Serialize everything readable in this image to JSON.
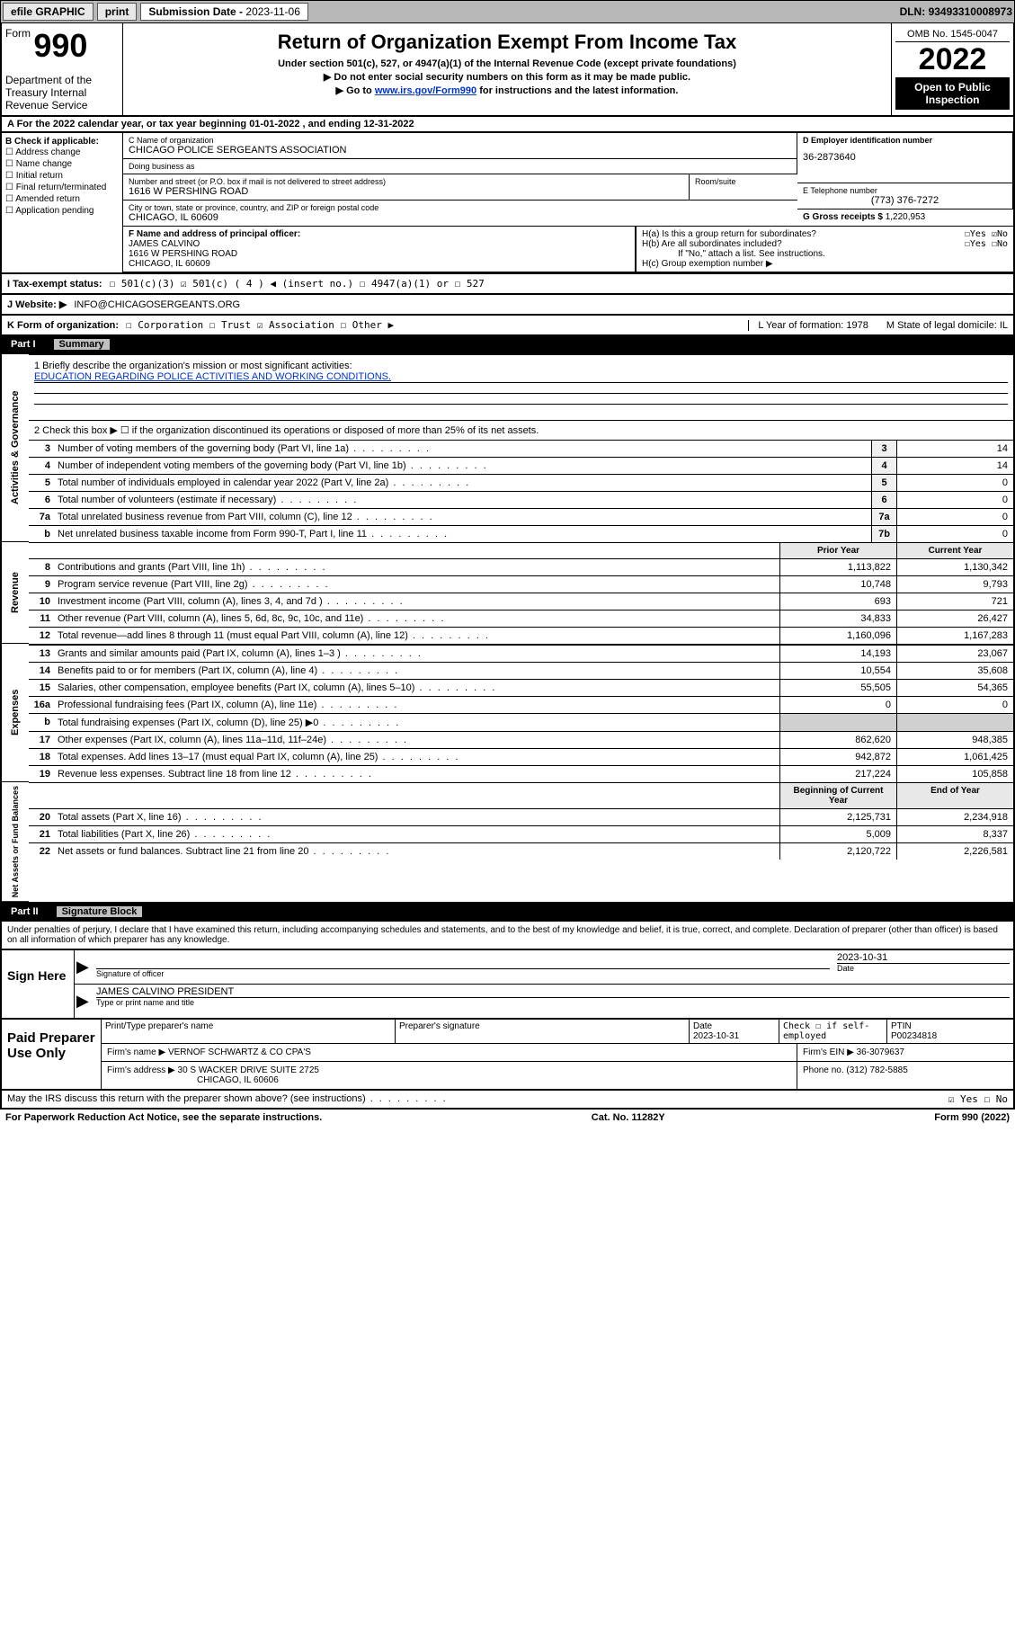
{
  "topbar": {
    "efile": "efile GRAPHIC",
    "print": "print",
    "subdate_label": "Submission Date - ",
    "subdate": "2023-11-06",
    "dln_label": "DLN: ",
    "dln": "93493310008973"
  },
  "header": {
    "form_prefix": "Form",
    "form_number": "990",
    "dept": "Department of the Treasury\nInternal Revenue Service",
    "title": "Return of Organization Exempt From Income Tax",
    "sub1": "Under section 501(c), 527, or 4947(a)(1) of the Internal Revenue Code (except private foundations)",
    "sub2": "▶ Do not enter social security numbers on this form as it may be made public.",
    "sub3_pre": "▶ Go to ",
    "sub3_link": "www.irs.gov/Form990",
    "sub3_post": " for instructions and the latest information.",
    "omb": "OMB No. 1545-0047",
    "year": "2022",
    "open": "Open to Public Inspection"
  },
  "rowA": "A For the 2022 calendar year, or tax year beginning 01-01-2022   , and ending 12-31-2022",
  "boxB": {
    "label": "B Check if applicable:",
    "opts": [
      "Address change",
      "Name change",
      "Initial return",
      "Final return/terminated",
      "Amended return",
      "Application pending"
    ]
  },
  "boxC": {
    "name_label": "C Name of organization",
    "name": "CHICAGO POLICE SERGEANTS ASSOCIATION",
    "dba_label": "Doing business as",
    "dba": "",
    "street_label": "Number and street (or P.O. box if mail is not delivered to street address)",
    "room_label": "Room/suite",
    "street": "1616 W PERSHING ROAD",
    "city_label": "City or town, state or province, country, and ZIP or foreign postal code",
    "city": "CHICAGO, IL  60609"
  },
  "boxD": {
    "label": "D Employer identification number",
    "val": "36-2873640"
  },
  "boxE": {
    "label": "E Telephone number",
    "val": "(773) 376-7272"
  },
  "boxG": {
    "label": "G Gross receipts $ ",
    "val": "1,220,953"
  },
  "boxF": {
    "label": "F Name and address of principal officer:",
    "name": "JAMES CALVINO",
    "street": "1616 W PERSHING ROAD",
    "city": "CHICAGO, IL  60609"
  },
  "boxH": {
    "a": "H(a)  Is this a group return for subordinates?",
    "a_ans": "☐Yes ☑No",
    "b": "H(b)  Are all subordinates included?",
    "b_ans": "☐Yes ☐No",
    "b_note": "If \"No,\" attach a list. See instructions.",
    "c": "H(c)  Group exemption number ▶"
  },
  "rowI": {
    "label": "I   Tax-exempt status:",
    "opts": "☐ 501(c)(3)   ☑ 501(c) ( 4 ) ◀ (insert no.)   ☐ 4947(a)(1) or   ☐ 527"
  },
  "rowJ": {
    "label": "J   Website: ▶",
    "val": "INFO@CHICAGOSERGEANTS.ORG"
  },
  "rowK": {
    "label": "K Form of organization:",
    "opts": "☐ Corporation  ☐ Trust  ☑ Association  ☐ Other ▶",
    "L": "L Year of formation: 1978",
    "M": "M State of legal domicile: IL"
  },
  "partI": {
    "label": "Part I",
    "title": "Summary"
  },
  "sectA": {
    "label": "Activities & Governance",
    "l1_label": "1   Briefly describe the organization's mission or most significant activities:",
    "l1_val": "EDUCATION REGARDING POLICE ACTIVITIES AND WORKING CONDITIONS.",
    "l2": "2   Check this box ▶ ☐  if the organization discontinued its operations or disposed of more than 25% of its net assets.",
    "rows": [
      {
        "n": "3",
        "t": "Number of voting members of the governing body (Part VI, line 1a)",
        "bn": "3",
        "v": "14"
      },
      {
        "n": "4",
        "t": "Number of independent voting members of the governing body (Part VI, line 1b)",
        "bn": "4",
        "v": "14"
      },
      {
        "n": "5",
        "t": "Total number of individuals employed in calendar year 2022 (Part V, line 2a)",
        "bn": "5",
        "v": "0"
      },
      {
        "n": "6",
        "t": "Total number of volunteers (estimate if necessary)",
        "bn": "6",
        "v": "0"
      },
      {
        "n": "7a",
        "t": "Total unrelated business revenue from Part VIII, column (C), line 12",
        "bn": "7a",
        "v": "0"
      },
      {
        "n": "b",
        "t": "Net unrelated business taxable income from Form 990-T, Part I, line 11",
        "bn": "7b",
        "v": "0"
      }
    ]
  },
  "colhdr": {
    "prior": "Prior Year",
    "current": "Current Year",
    "beg": "Beginning of Current Year",
    "end": "End of Year"
  },
  "sectR": {
    "label": "Revenue",
    "rows": [
      {
        "n": "8",
        "t": "Contributions and grants (Part VIII, line 1h)",
        "v1": "1,113,822",
        "v2": "1,130,342"
      },
      {
        "n": "9",
        "t": "Program service revenue (Part VIII, line 2g)",
        "v1": "10,748",
        "v2": "9,793"
      },
      {
        "n": "10",
        "t": "Investment income (Part VIII, column (A), lines 3, 4, and 7d )",
        "v1": "693",
        "v2": "721"
      },
      {
        "n": "11",
        "t": "Other revenue (Part VIII, column (A), lines 5, 6d, 8c, 9c, 10c, and 11e)",
        "v1": "34,833",
        "v2": "26,427"
      },
      {
        "n": "12",
        "t": "Total revenue—add lines 8 through 11 (must equal Part VIII, column (A), line 12)",
        "v1": "1,160,096",
        "v2": "1,167,283"
      }
    ]
  },
  "sectE": {
    "label": "Expenses",
    "rows": [
      {
        "n": "13",
        "t": "Grants and similar amounts paid (Part IX, column (A), lines 1–3 )",
        "v1": "14,193",
        "v2": "23,067"
      },
      {
        "n": "14",
        "t": "Benefits paid to or for members (Part IX, column (A), line 4)",
        "v1": "10,554",
        "v2": "35,608"
      },
      {
        "n": "15",
        "t": "Salaries, other compensation, employee benefits (Part IX, column (A), lines 5–10)",
        "v1": "55,505",
        "v2": "54,365"
      },
      {
        "n": "16a",
        "t": "Professional fundraising fees (Part IX, column (A), line 11e)",
        "v1": "0",
        "v2": "0"
      },
      {
        "n": "b",
        "t": "Total fundraising expenses (Part IX, column (D), line 25) ▶0",
        "v1": "",
        "v2": "",
        "gray": true
      },
      {
        "n": "17",
        "t": "Other expenses (Part IX, column (A), lines 11a–11d, 11f–24e)",
        "v1": "862,620",
        "v2": "948,385"
      },
      {
        "n": "18",
        "t": "Total expenses. Add lines 13–17 (must equal Part IX, column (A), line 25)",
        "v1": "942,872",
        "v2": "1,061,425"
      },
      {
        "n": "19",
        "t": "Revenue less expenses. Subtract line 18 from line 12",
        "v1": "217,224",
        "v2": "105,858"
      }
    ]
  },
  "sectN": {
    "label": "Net Assets or Fund Balances",
    "rows": [
      {
        "n": "20",
        "t": "Total assets (Part X, line 16)",
        "v1": "2,125,731",
        "v2": "2,234,918"
      },
      {
        "n": "21",
        "t": "Total liabilities (Part X, line 26)",
        "v1": "5,009",
        "v2": "8,337"
      },
      {
        "n": "22",
        "t": "Net assets or fund balances. Subtract line 21 from line 20",
        "v1": "2,120,722",
        "v2": "2,226,581"
      }
    ]
  },
  "partII": {
    "label": "Part II",
    "title": "Signature Block"
  },
  "sig": {
    "disclaimer": "Under penalties of perjury, I declare that I have examined this return, including accompanying schedules and statements, and to the best of my knowledge and belief, it is true, correct, and complete. Declaration of preparer (other than officer) is based on all information of which preparer has any knowledge.",
    "sign_here": "Sign Here",
    "sig_officer_label": "Signature of officer",
    "date_label": "Date",
    "date_val": "2023-10-31",
    "name_val": "JAMES CALVINO  PRESIDENT",
    "name_label": "Type or print name and title"
  },
  "prep": {
    "left": "Paid Preparer Use Only",
    "r1": {
      "c1": "Print/Type preparer's name",
      "c2": "Preparer's signature",
      "c3_label": "Date",
      "c3": "2023-10-31",
      "c4": "Check ☐ if self-employed",
      "c5_label": "PTIN",
      "c5": "P00234818"
    },
    "r2": {
      "label": "Firm's name    ▶ ",
      "val": "VERNOF SCHWARTZ & CO CPA'S",
      "ein_label": "Firm's EIN ▶ ",
      "ein": "36-3079637"
    },
    "r3": {
      "label": "Firm's address ▶ ",
      "val": "30 S WACKER DRIVE SUITE 2725",
      "city": "CHICAGO, IL  60606",
      "ph_label": "Phone no. ",
      "ph": "(312) 782-5885"
    }
  },
  "footer": {
    "q": "May the IRS discuss this return with the preparer shown above? (see instructions)",
    "ans": "☑ Yes  ☐ No",
    "pra": "For Paperwork Reduction Act Notice, see the separate instructions.",
    "cat": "Cat. No. 11282Y",
    "form": "Form 990 (2022)"
  },
  "colors": {
    "link": "#0033cc",
    "header_gray": "#b8b8b8",
    "cell_gray": "#d0d0d0"
  }
}
